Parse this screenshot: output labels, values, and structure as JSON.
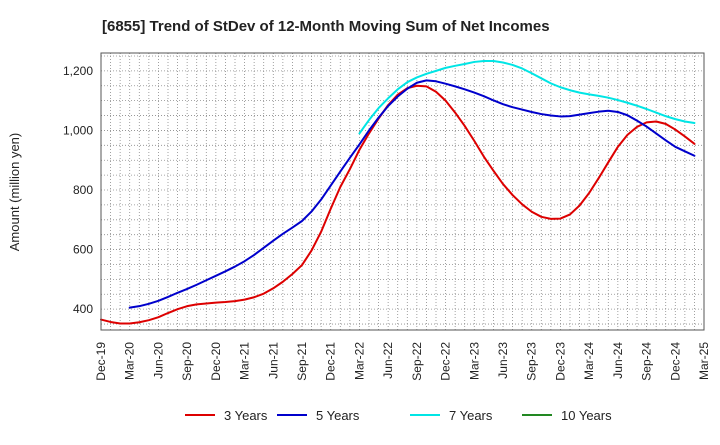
{
  "chart_data": {
    "type": "line",
    "title": "[6855]  Trend of StDev of 12-Month Moving Sum of Net Incomes",
    "ylabel": "Amount (million yen)",
    "xlabel": "",
    "ylim": [
      330,
      1260
    ],
    "yticks": [
      400,
      600,
      800,
      1000,
      1200
    ],
    "ytick_labels": [
      "400",
      "600",
      "800",
      "1,000",
      "1,200"
    ],
    "xticks": [
      "Dec-19",
      "Mar-20",
      "Jun-20",
      "Sep-20",
      "Dec-20",
      "Mar-21",
      "Jun-21",
      "Sep-21",
      "Dec-21",
      "Mar-22",
      "Jun-22",
      "Sep-22",
      "Dec-22",
      "Mar-23",
      "Jun-23",
      "Sep-23",
      "Dec-23",
      "Mar-24",
      "Jun-24",
      "Sep-24",
      "Dec-24",
      "Mar-25"
    ],
    "grid": true,
    "legend_position": "bottom",
    "series": [
      {
        "name": "3 Years",
        "color": "#dd0000",
        "points": [
          [
            "Dec-19",
            365
          ],
          [
            "Jan-20",
            357
          ],
          [
            "Feb-20",
            352
          ],
          [
            "Mar-20",
            352
          ],
          [
            "Apr-20",
            356
          ],
          [
            "May-20",
            363
          ],
          [
            "Jun-20",
            373
          ],
          [
            "Jul-20",
            387
          ],
          [
            "Aug-20",
            400
          ],
          [
            "Sep-20",
            410
          ],
          [
            "Oct-20",
            416
          ],
          [
            "Nov-20",
            419
          ],
          [
            "Dec-20",
            422
          ],
          [
            "Jan-21",
            424
          ],
          [
            "Feb-21",
            427
          ],
          [
            "Mar-21",
            432
          ],
          [
            "Apr-21",
            440
          ],
          [
            "May-21",
            452
          ],
          [
            "Jun-21",
            470
          ],
          [
            "Jul-21",
            492
          ],
          [
            "Aug-21",
            518
          ],
          [
            "Sep-21",
            548
          ],
          [
            "Oct-21",
            597
          ],
          [
            "Nov-21",
            660
          ],
          [
            "Dec-21",
            737
          ],
          [
            "Jan-22",
            810
          ],
          [
            "Feb-22",
            870
          ],
          [
            "Mar-22",
            935
          ],
          [
            "Apr-22",
            990
          ],
          [
            "May-22",
            1040
          ],
          [
            "Jun-22",
            1085
          ],
          [
            "Jul-22",
            1120
          ],
          [
            "Aug-22",
            1142
          ],
          [
            "Sep-22",
            1150
          ],
          [
            "Oct-22",
            1148
          ],
          [
            "Nov-22",
            1130
          ],
          [
            "Dec-22",
            1100
          ],
          [
            "Jan-23",
            1060
          ],
          [
            "Feb-23",
            1015
          ],
          [
            "Mar-23",
            965
          ],
          [
            "Apr-23",
            912
          ],
          [
            "May-23",
            865
          ],
          [
            "Jun-23",
            820
          ],
          [
            "Jul-23",
            783
          ],
          [
            "Aug-23",
            752
          ],
          [
            "Sep-23",
            727
          ],
          [
            "Oct-23",
            710
          ],
          [
            "Nov-23",
            703
          ],
          [
            "Dec-23",
            704
          ],
          [
            "Jan-24",
            718
          ],
          [
            "Feb-24",
            748
          ],
          [
            "Mar-24",
            790
          ],
          [
            "Apr-24",
            840
          ],
          [
            "May-24",
            893
          ],
          [
            "Jun-24",
            945
          ],
          [
            "Jul-24",
            985
          ],
          [
            "Aug-24",
            1012
          ],
          [
            "Sep-24",
            1027
          ],
          [
            "Oct-24",
            1030
          ],
          [
            "Nov-24",
            1022
          ],
          [
            "Dec-24",
            1003
          ],
          [
            "Jan-25",
            980
          ],
          [
            "Feb-25",
            955
          ]
        ]
      },
      {
        "name": "5 Years",
        "color": "#0000cc",
        "points": [
          [
            "Mar-20",
            405
          ],
          [
            "Apr-20",
            410
          ],
          [
            "May-20",
            418
          ],
          [
            "Jun-20",
            428
          ],
          [
            "Jul-20",
            441
          ],
          [
            "Aug-20",
            455
          ],
          [
            "Sep-20",
            468
          ],
          [
            "Oct-20",
            482
          ],
          [
            "Nov-20",
            497
          ],
          [
            "Dec-20",
            512
          ],
          [
            "Jan-21",
            527
          ],
          [
            "Feb-21",
            543
          ],
          [
            "Mar-21",
            561
          ],
          [
            "Apr-21",
            582
          ],
          [
            "May-21",
            606
          ],
          [
            "Jun-21",
            630
          ],
          [
            "Jul-21",
            653
          ],
          [
            "Aug-21",
            674
          ],
          [
            "Sep-21",
            696
          ],
          [
            "Oct-21",
            728
          ],
          [
            "Nov-21",
            768
          ],
          [
            "Dec-21",
            815
          ],
          [
            "Jan-22",
            862
          ],
          [
            "Feb-22",
            908
          ],
          [
            "Mar-22",
            953
          ],
          [
            "Apr-22",
            1000
          ],
          [
            "May-22",
            1043
          ],
          [
            "Jun-22",
            1082
          ],
          [
            "Jul-22",
            1114
          ],
          [
            "Aug-22",
            1140
          ],
          [
            "Sep-22",
            1160
          ],
          [
            "Oct-22",
            1168
          ],
          [
            "Nov-22",
            1165
          ],
          [
            "Dec-22",
            1157
          ],
          [
            "Jan-23",
            1148
          ],
          [
            "Feb-23",
            1138
          ],
          [
            "Mar-23",
            1127
          ],
          [
            "Apr-23",
            1115
          ],
          [
            "May-23",
            1101
          ],
          [
            "Jun-23",
            1088
          ],
          [
            "Jul-23",
            1078
          ],
          [
            "Aug-23",
            1070
          ],
          [
            "Sep-23",
            1062
          ],
          [
            "Oct-23",
            1055
          ],
          [
            "Nov-23",
            1050
          ],
          [
            "Dec-23",
            1047
          ],
          [
            "Jan-24",
            1048
          ],
          [
            "Feb-24",
            1053
          ],
          [
            "Mar-24",
            1058
          ],
          [
            "Apr-24",
            1063
          ],
          [
            "May-24",
            1066
          ],
          [
            "Jun-24",
            1062
          ],
          [
            "Jul-24",
            1051
          ],
          [
            "Aug-24",
            1033
          ],
          [
            "Sep-24",
            1013
          ],
          [
            "Oct-24",
            990
          ],
          [
            "Nov-24",
            967
          ],
          [
            "Dec-24",
            945
          ],
          [
            "Jan-25",
            930
          ],
          [
            "Feb-25",
            915
          ]
        ]
      },
      {
        "name": "7 Years",
        "color": "#00e5e5",
        "points": [
          [
            "Mar-22",
            990
          ],
          [
            "Apr-22",
            1035
          ],
          [
            "May-22",
            1075
          ],
          [
            "Jun-22",
            1108
          ],
          [
            "Jul-22",
            1138
          ],
          [
            "Aug-22",
            1162
          ],
          [
            "Sep-22",
            1178
          ],
          [
            "Oct-22",
            1190
          ],
          [
            "Nov-22",
            1200
          ],
          [
            "Dec-22",
            1210
          ],
          [
            "Jan-23",
            1217
          ],
          [
            "Feb-23",
            1223
          ],
          [
            "Mar-23",
            1230
          ],
          [
            "Apr-23",
            1233
          ],
          [
            "May-23",
            1233
          ],
          [
            "Jun-23",
            1228
          ],
          [
            "Jul-23",
            1220
          ],
          [
            "Aug-23",
            1208
          ],
          [
            "Sep-23",
            1192
          ],
          [
            "Oct-23",
            1175
          ],
          [
            "Nov-23",
            1158
          ],
          [
            "Dec-23",
            1145
          ],
          [
            "Jan-24",
            1135
          ],
          [
            "Feb-24",
            1127
          ],
          [
            "Mar-24",
            1121
          ],
          [
            "Apr-24",
            1116
          ],
          [
            "May-24",
            1110
          ],
          [
            "Jun-24",
            1102
          ],
          [
            "Jul-24",
            1093
          ],
          [
            "Aug-24",
            1083
          ],
          [
            "Sep-24",
            1072
          ],
          [
            "Oct-24",
            1060
          ],
          [
            "Nov-24",
            1048
          ],
          [
            "Dec-24",
            1038
          ],
          [
            "Jan-25",
            1030
          ],
          [
            "Feb-25",
            1025
          ]
        ]
      },
      {
        "name": "10 Years",
        "color": "#228822",
        "points": []
      }
    ]
  }
}
